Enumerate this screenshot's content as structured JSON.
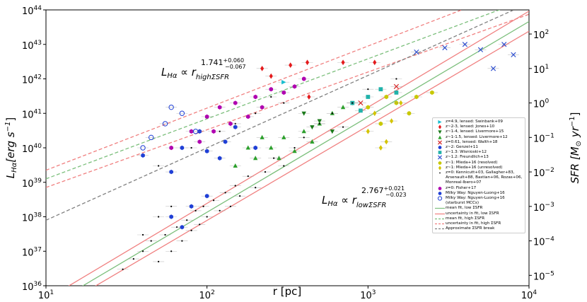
{
  "chart_data": {
    "type": "scatter",
    "xlabel": "r [pc]",
    "ylabel_parts": [
      "L",
      "Hα",
      "[erg s",
      "−1",
      "]"
    ],
    "y2label_parts": [
      "SFR [M",
      "⊙",
      " yr",
      "−1",
      "]"
    ],
    "annotation_high": [
      "L",
      "Hα",
      " ∝ r",
      "highΣSFR",
      "1.741",
      "+0.060",
      "−0.067"
    ],
    "annotation_low": [
      "L",
      "Hα",
      " ∝ r",
      "lowΣSFR",
      "2.767",
      "+0.021",
      "−0.023"
    ],
    "xscale": "log",
    "yscale": "log",
    "y2scale": "log",
    "xlim": [
      10,
      10000
    ],
    "ylim": [
      1e+36,
      1e+44
    ],
    "y2lim": [
      5e-06,
      500
    ],
    "xticks": [
      {
        "value": 10,
        "label": "10",
        "exponent": "1"
      },
      {
        "value": 100,
        "label": "10",
        "exponent": "2"
      },
      {
        "value": 1000,
        "label": "10",
        "exponent": "3"
      },
      {
        "value": 10000,
        "label": "10",
        "exponent": "4"
      }
    ],
    "yticks": [
      {
        "value": 1e+36,
        "label": "10",
        "exponent": "36"
      },
      {
        "value": 1e+37,
        "label": "10",
        "exponent": "37"
      },
      {
        "value": 1e+38,
        "label": "10",
        "exponent": "38"
      },
      {
        "value": 1e+39,
        "label": "10",
        "exponent": "39"
      },
      {
        "value": 1e+40,
        "label": "10",
        "exponent": "40"
      },
      {
        "value": 1e+41,
        "label": "10",
        "exponent": "41"
      },
      {
        "value": 1e+42,
        "label": "10",
        "exponent": "42"
      },
      {
        "value": 1e+43,
        "label": "10",
        "exponent": "43"
      },
      {
        "value": 1e+44,
        "label": "10",
        "exponent": "44"
      }
    ],
    "y2ticks": [
      {
        "value": 1e-05,
        "label": "10",
        "exponent": "−5"
      },
      {
        "value": 0.0001,
        "label": "10",
        "exponent": "−4"
      },
      {
        "value": 0.001,
        "label": "10",
        "exponent": "−3"
      },
      {
        "value": 0.01,
        "label": "10",
        "exponent": "−2"
      },
      {
        "value": 0.1,
        "label": "10",
        "exponent": "−1"
      },
      {
        "value": 1,
        "label": "10",
        "exponent": "0"
      },
      {
        "value": 10,
        "label": "10",
        "exponent": "1"
      },
      {
        "value": 100,
        "label": "10",
        "exponent": "2"
      }
    ],
    "series": [
      {
        "name": "z=4.9, lensed: Swinbank+09",
        "color": "#17becf",
        "marker": "triangle-right",
        "x": [
          300
        ],
        "values": [
          8e+41
        ]
      },
      {
        "name": "z~2-3, lensed: Jones+10",
        "color": "#e41a1c",
        "marker": "diamond",
        "x": [
          220,
          250,
          330,
          420,
          430,
          700,
          1100
        ],
        "values": [
          2e+42,
          1.2e+42,
          2.5e+42,
          3e+42,
          3e+41,
          3e+42,
          3e+42
        ]
      },
      {
        "name": "z~1-4, lensed: Livermore+15",
        "color": "#1a7a1a",
        "marker": "triangle-down",
        "x": [
          400,
          450,
          500,
          600,
          800
        ],
        "values": [
          1e+41,
          4e+40,
          6e+40,
          3e+40,
          2e+41
        ]
      },
      {
        "name": "z~1-1.5, lensed: Livermore+12",
        "color": "#2ca02c",
        "marker": "triangle-up",
        "x": [
          150,
          180,
          200,
          220,
          250,
          280,
          300,
          350,
          400,
          450,
          500,
          600,
          700
        ],
        "values": [
          3e+39,
          1e+40,
          5e+39,
          2e+40,
          1e+40,
          5e+39,
          2e+40,
          8e+39,
          3e+40,
          1.5e+40,
          5e+40,
          1e+41,
          1.5e+41
        ]
      },
      {
        "name": "z=0.61, lensed: Walth+18",
        "color": "#d62728",
        "marker": "x",
        "x": [
          900,
          1500
        ],
        "values": [
          2e+41,
          6e+41
        ]
      },
      {
        "name": "z~2: Genzel+11",
        "color": "#1f3fd6",
        "marker": "hexagon",
        "x": [
          40,
          60,
          70,
          90,
          100,
          120,
          130,
          150,
          200
        ],
        "values": [
          6e+39,
          2e+39,
          1e+40,
          3e+40,
          8e+39,
          5e+39,
          1.5e+40,
          4e+40,
          1e+40
        ]
      },
      {
        "name": "z~1.3: Wisnioski+12",
        "color": "#20b2aa",
        "marker": "square",
        "x": [
          800,
          900,
          1000,
          1200,
          1500
        ],
        "values": [
          2e+41,
          1.2e+41,
          3e+41,
          5e+41,
          4e+41
        ]
      },
      {
        "name": "z~1.2: Freundlich+13",
        "color": "#3050d0",
        "marker": "x",
        "x": [
          2000,
          3000,
          4000,
          5000,
          6000,
          7000,
          8000
        ],
        "values": [
          6e+42,
          8e+42,
          1e+43,
          7e+42,
          2e+42,
          1e+43,
          5e+42
        ]
      },
      {
        "name": "z~1: Mieda+16 (resolved)",
        "color": "#c8c800",
        "marker": "hexagon",
        "x": [
          1000,
          1200,
          1300,
          1500,
          1800,
          2000,
          2500
        ],
        "values": [
          1.5e+41,
          5e+40,
          3e+41,
          2e+41,
          1e+41,
          3e+41,
          4e+41
        ]
      },
      {
        "name": "z~1: Mieda+16 (unresolved)",
        "color": "#d4c400",
        "marker": "diamond",
        "x": [
          1000,
          1100,
          1200,
          1300,
          1400,
          1600
        ],
        "values": [
          3e+40,
          1e+41,
          1e+40,
          1.5e+40,
          6e+40,
          2e+41
        ]
      },
      {
        "name": "z=0: Kennicutt+03, Gallagher+83, Arsenault+88, Bastian+06, Rozas+06, Monreal-Ibero+07",
        "color": "#000000",
        "marker": "dot",
        "x": [
          30,
          35,
          40,
          45,
          50,
          55,
          60,
          65,
          70,
          75,
          80,
          85,
          90,
          95,
          100,
          110,
          120,
          130,
          140,
          150,
          160,
          180,
          200,
          230,
          260,
          300,
          350,
          400,
          500,
          600,
          700,
          800,
          40,
          50,
          60,
          50,
          80,
          120,
          200,
          300,
          150,
          250,
          1000,
          1500
        ],
        "values": [
          3e+36,
          6e+36,
          1e+37,
          2e+37,
          5e+36,
          3e+37,
          1e+37,
          5e+37,
          2e+37,
          8e+37,
          4e+37,
          1.5e+38,
          6e+37,
          2e+38,
          1e+38,
          3e+38,
          1.5e+38,
          5e+38,
          2e+38,
          8e+38,
          4e+38,
          1.5e+39,
          7e+38,
          2e+39,
          5e+39,
          3e+39,
          1e+40,
          2e+40,
          5e+40,
          1e+41,
          4e+40,
          2e+41,
          3e+37,
          1e+38,
          2e+38,
          3e+39,
          1e+40,
          3e+40,
          1e+41,
          2e+41,
          5e+40,
          3e+41,
          5e+41,
          1e+42
        ]
      },
      {
        "name": "z=0: Fisher+17",
        "color": "#b000b0",
        "marker": "hexagon",
        "x": [
          60,
          80,
          90,
          100,
          110,
          120,
          140,
          150,
          180,
          200,
          220,
          250,
          300,
          350,
          400
        ],
        "values": [
          1e+40,
          3e+40,
          1.5e+40,
          8e+40,
          3e+40,
          1.5e+41,
          5e+40,
          2e+41,
          8e+40,
          3e+41,
          1.5e+41,
          5e+41,
          4e+41,
          6e+41,
          1e+42
        ]
      },
      {
        "name": "Milky Way: Nguyen-Luong+16",
        "color": "#1f3fd6",
        "marker": "hexagon",
        "x": [
          60,
          70,
          80,
          100
        ],
        "values": [
          1e+38,
          5e+37,
          2e+38,
          4e+38
        ]
      },
      {
        "name": "Milky Way: Nguyen-Luong+16 (starburst MCCs)",
        "color": "#1f3fd6",
        "marker": "open-circle",
        "x": [
          40,
          45,
          55,
          60,
          70,
          85
        ],
        "values": [
          1e+40,
          2e+40,
          5e+40,
          1.5e+41,
          1e+41,
          3e+40
        ]
      }
    ],
    "fits": [
      {
        "name": "mean fit, low ΣSFR",
        "color": "#7cbf7c",
        "dash": false,
        "curves": [
          {
            "x": [
              10,
              10000
            ],
            "y": [
              2.31e+35,
              4.61e+43
            ]
          }
        ]
      },
      {
        "name": "uncertainty in fit, low ΣSFR",
        "color": "#f08080",
        "dash": false,
        "curves": [
          {
            "x": [
              10,
              10000
            ],
            "y": [
              3.98e+35,
              9.2e+43
            ]
          },
          {
            "x": [
              10,
              10000
            ],
            "y": [
              1.41e+35,
              2.41e+43
            ]
          }
        ]
      },
      {
        "name": "mean fit, high ΣSFR",
        "color": "#7cbf7c",
        "dash": true,
        "curves": [
          {
            "x": [
              10,
              10000
            ],
            "y": [
              1.26e+39,
              2.1e+44
            ]
          }
        ]
      },
      {
        "name": "uncertainty in fit, high ΣSFR",
        "color": "#f08080",
        "dash": true,
        "curves": [
          {
            "x": [
              10,
              10000
            ],
            "y": [
              2.24e+39,
              5.66e+44
            ]
          },
          {
            "x": [
              10,
              10000
            ],
            "y": [
              7.08e+38,
              7.45e+43
            ]
          }
        ]
      },
      {
        "name": "Approximate ΣSFR break",
        "color": "#808080",
        "dash": true,
        "curves": [
          {
            "x": [
              10,
              10000
            ],
            "y": [
              7.94e+37,
              1.58e+44
            ]
          }
        ]
      }
    ]
  }
}
